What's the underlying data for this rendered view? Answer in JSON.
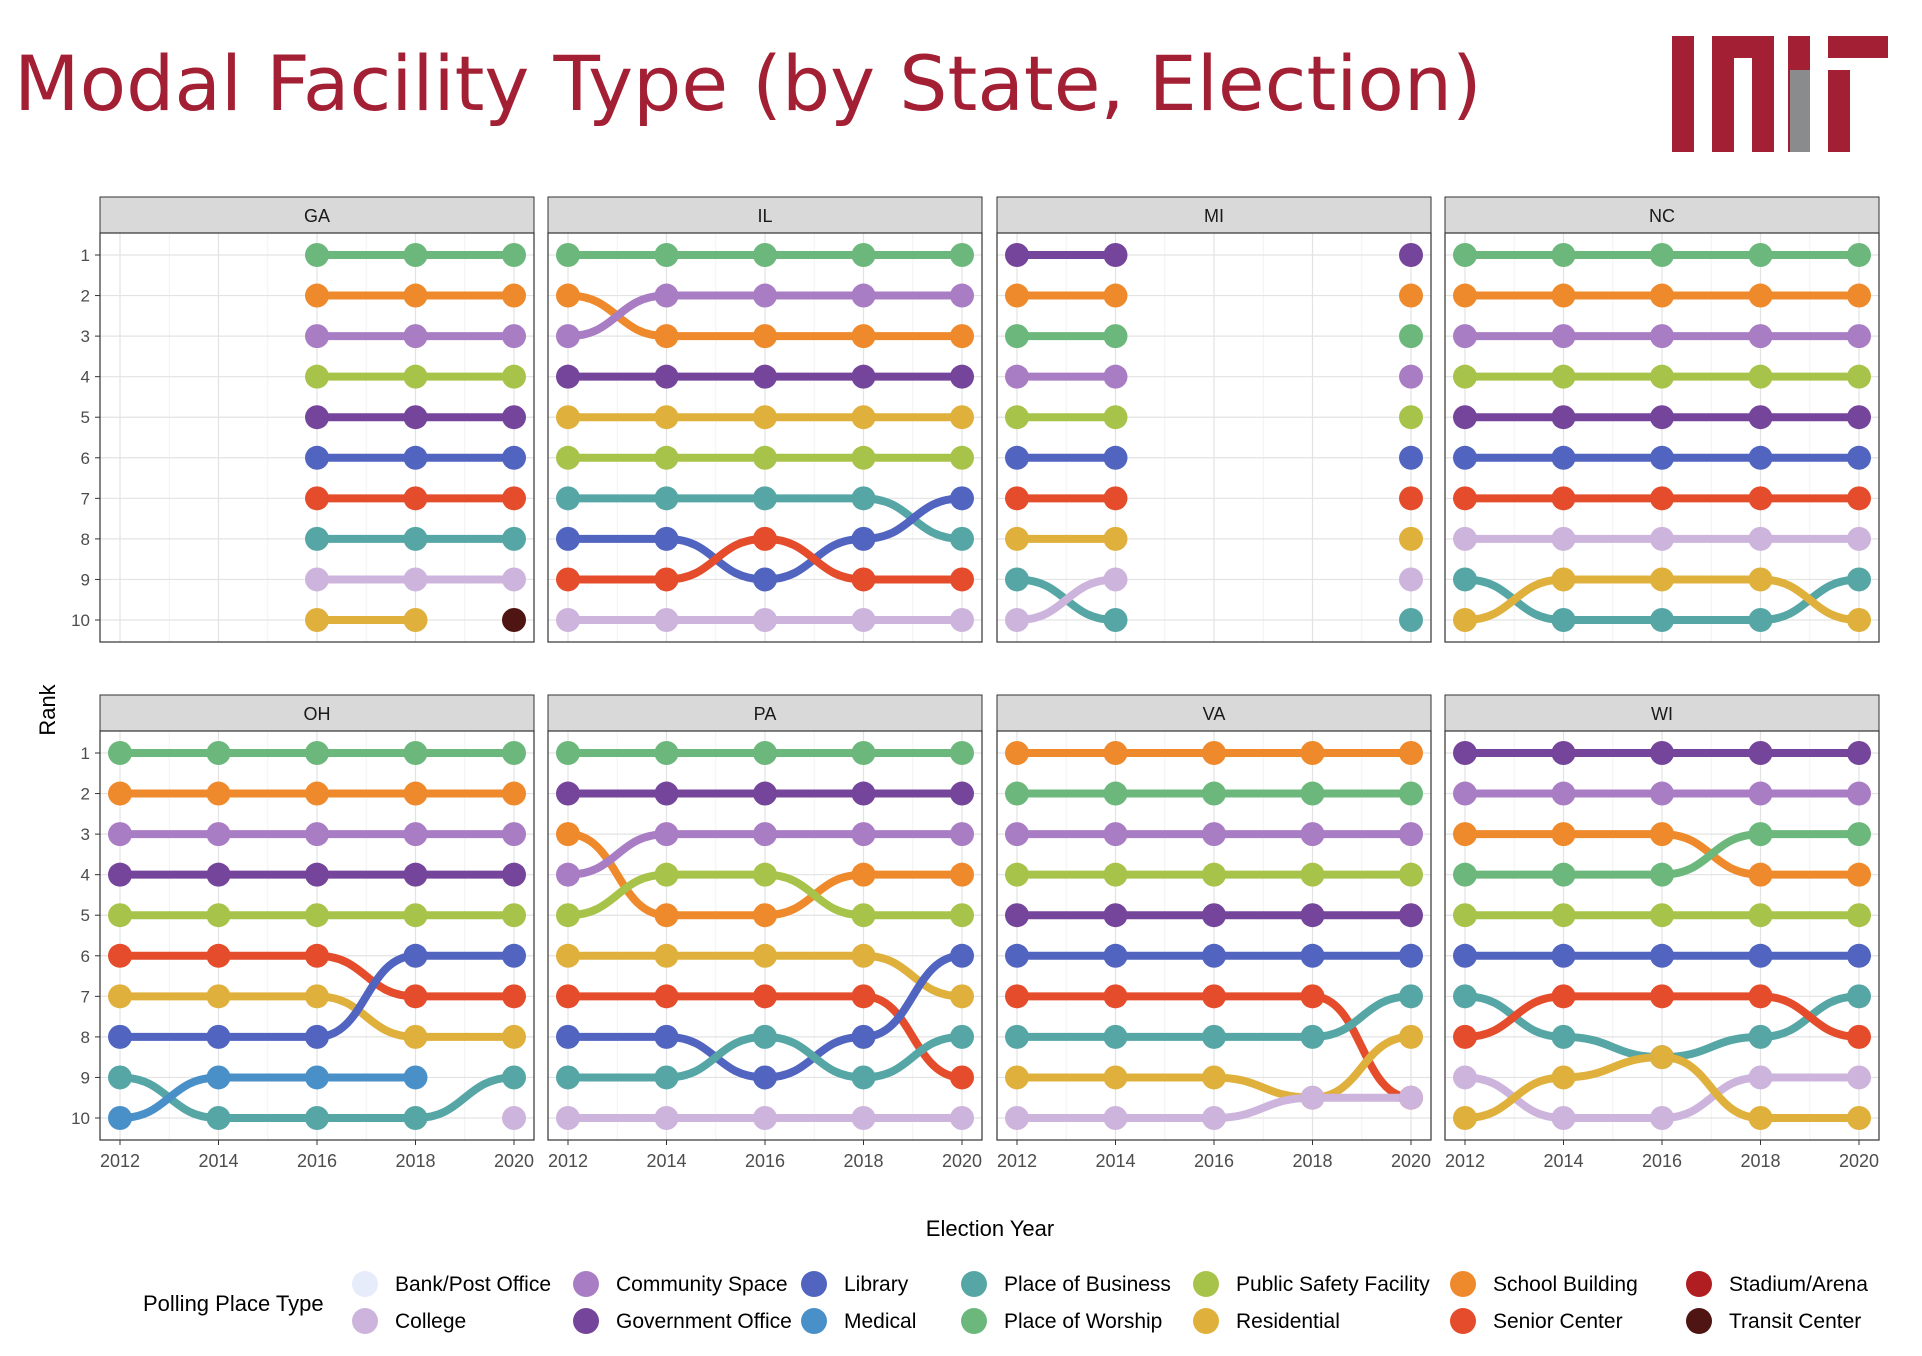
{
  "page": {
    "title": "Modal Facility Type (by State, Election)",
    "title_color": "#a31f34",
    "logo": {
      "text": "MIT",
      "color_main": "#a31f34",
      "color_accent": "#8a8b8c"
    }
  },
  "chart_data": {
    "type": "line",
    "subtype": "bump-chart-faceted",
    "xlabel": "Election Year",
    "ylabel": "Rank",
    "x": [
      2012,
      2014,
      2016,
      2018,
      2020
    ],
    "y_ticks": [
      1,
      2,
      3,
      4,
      5,
      6,
      7,
      8,
      9,
      10
    ],
    "xlim": [
      2012,
      2020
    ],
    "ylim": [
      10,
      1
    ],
    "grid": true,
    "legend": {
      "title": "Polling Place Type",
      "position": "bottom",
      "entries": [
        {
          "name": "Bank/Post Office",
          "color": "#e6ecfa"
        },
        {
          "name": "College",
          "color": "#cdb4dc"
        },
        {
          "name": "Community Space",
          "color": "#a97dc4"
        },
        {
          "name": "Government Office",
          "color": "#74459a"
        },
        {
          "name": "Library",
          "color": "#5064c0"
        },
        {
          "name": "Medical",
          "color": "#4a90c8"
        },
        {
          "name": "Place of Business",
          "color": "#57a6a6"
        },
        {
          "name": "Place of Worship",
          "color": "#6cb87c"
        },
        {
          "name": "Public Safety Facility",
          "color": "#a8c34a"
        },
        {
          "name": "Residential",
          "color": "#e0b03c"
        },
        {
          "name": "School Building",
          "color": "#ef8a2c"
        },
        {
          "name": "Senior Center",
          "color": "#e44c2c"
        },
        {
          "name": "Stadium/Arena",
          "color": "#b01e22"
        },
        {
          "name": "Transit Center",
          "color": "#4e1512"
        }
      ]
    },
    "panels": [
      {
        "state": "GA",
        "series": [
          {
            "name": "Place of Worship",
            "values": [
              null,
              null,
              1,
              1,
              1
            ]
          },
          {
            "name": "School Building",
            "values": [
              null,
              null,
              2,
              2,
              2
            ]
          },
          {
            "name": "Community Space",
            "values": [
              null,
              null,
              3,
              3,
              3
            ]
          },
          {
            "name": "Public Safety Facility",
            "values": [
              null,
              null,
              4,
              4,
              4
            ]
          },
          {
            "name": "Government Office",
            "values": [
              null,
              null,
              5,
              5,
              5
            ]
          },
          {
            "name": "Library",
            "values": [
              null,
              null,
              6,
              6,
              6
            ]
          },
          {
            "name": "Senior Center",
            "values": [
              null,
              null,
              7,
              7,
              7
            ]
          },
          {
            "name": "Place of Business",
            "values": [
              null,
              null,
              8,
              8,
              8
            ]
          },
          {
            "name": "College",
            "values": [
              null,
              null,
              9,
              9,
              9
            ]
          },
          {
            "name": "Residential",
            "values": [
              null,
              null,
              10,
              10,
              null
            ]
          },
          {
            "name": "Transit Center",
            "values": [
              null,
              null,
              null,
              null,
              10
            ]
          }
        ]
      },
      {
        "state": "IL",
        "series": [
          {
            "name": "Place of Worship",
            "values": [
              1,
              1,
              1,
              1,
              1
            ]
          },
          {
            "name": "School Building",
            "values": [
              2,
              3,
              3,
              3,
              3
            ]
          },
          {
            "name": "Community Space",
            "values": [
              3,
              2,
              2,
              2,
              2
            ]
          },
          {
            "name": "Government Office",
            "values": [
              4,
              4,
              4,
              4,
              4
            ]
          },
          {
            "name": "Residential",
            "values": [
              5,
              5,
              5,
              5,
              5
            ]
          },
          {
            "name": "Public Safety Facility",
            "values": [
              6,
              6,
              6,
              6,
              6
            ]
          },
          {
            "name": "Place of Business",
            "values": [
              7,
              7,
              7,
              7,
              8
            ]
          },
          {
            "name": "Library",
            "values": [
              8,
              8,
              9,
              8,
              7
            ]
          },
          {
            "name": "Senior Center",
            "values": [
              9,
              9,
              8,
              9,
              9
            ]
          },
          {
            "name": "College",
            "values": [
              10,
              10,
              10,
              10,
              10
            ]
          }
        ]
      },
      {
        "state": "MI",
        "series": [
          {
            "name": "Government Office",
            "values": [
              1,
              1,
              null,
              null,
              1
            ]
          },
          {
            "name": "School Building",
            "values": [
              2,
              2,
              null,
              null,
              2
            ]
          },
          {
            "name": "Place of Worship",
            "values": [
              3,
              3,
              null,
              null,
              3
            ]
          },
          {
            "name": "Community Space",
            "values": [
              4,
              4,
              null,
              null,
              4
            ]
          },
          {
            "name": "Public Safety Facility",
            "values": [
              5,
              5,
              null,
              null,
              5
            ]
          },
          {
            "name": "Library",
            "values": [
              6,
              6,
              null,
              null,
              6
            ]
          },
          {
            "name": "Senior Center",
            "values": [
              7,
              7,
              null,
              null,
              7
            ]
          },
          {
            "name": "Residential",
            "values": [
              8,
              8,
              null,
              null,
              8
            ]
          },
          {
            "name": "Place of Business",
            "values": [
              9,
              10,
              null,
              null,
              10
            ]
          },
          {
            "name": "College",
            "values": [
              10,
              9,
              null,
              null,
              9
            ]
          }
        ]
      },
      {
        "state": "NC",
        "series": [
          {
            "name": "Place of Worship",
            "values": [
              1,
              1,
              1,
              1,
              1
            ]
          },
          {
            "name": "School Building",
            "values": [
              2,
              2,
              2,
              2,
              2
            ]
          },
          {
            "name": "Community Space",
            "values": [
              3,
              3,
              3,
              3,
              3
            ]
          },
          {
            "name": "Public Safety Facility",
            "values": [
              4,
              4,
              4,
              4,
              4
            ]
          },
          {
            "name": "Government Office",
            "values": [
              5,
              5,
              5,
              5,
              5
            ]
          },
          {
            "name": "Library",
            "values": [
              6,
              6,
              6,
              6,
              6
            ]
          },
          {
            "name": "Senior Center",
            "values": [
              7,
              7,
              7,
              7,
              7
            ]
          },
          {
            "name": "College",
            "values": [
              8,
              8,
              8,
              8,
              8
            ]
          },
          {
            "name": "Place of Business",
            "values": [
              9,
              10,
              10,
              10,
              9
            ]
          },
          {
            "name": "Residential",
            "values": [
              10,
              9,
              9,
              9,
              10
            ]
          }
        ]
      },
      {
        "state": "OH",
        "series": [
          {
            "name": "Place of Worship",
            "values": [
              1,
              1,
              1,
              1,
              1
            ]
          },
          {
            "name": "School Building",
            "values": [
              2,
              2,
              2,
              2,
              2
            ]
          },
          {
            "name": "Community Space",
            "values": [
              3,
              3,
              3,
              3,
              3
            ]
          },
          {
            "name": "Government Office",
            "values": [
              4,
              4,
              4,
              4,
              4
            ]
          },
          {
            "name": "Public Safety Facility",
            "values": [
              5,
              5,
              5,
              5,
              5
            ]
          },
          {
            "name": "Senior Center",
            "values": [
              6,
              6,
              6,
              7,
              7
            ]
          },
          {
            "name": "Residential",
            "values": [
              7,
              7,
              7,
              8,
              8
            ]
          },
          {
            "name": "Library",
            "values": [
              8,
              8,
              8,
              6,
              6
            ]
          },
          {
            "name": "Place of Business",
            "values": [
              9,
              10,
              10,
              10,
              9
            ]
          },
          {
            "name": "Medical",
            "values": [
              10,
              9,
              9,
              9,
              null
            ]
          },
          {
            "name": "College",
            "values": [
              null,
              null,
              null,
              null,
              10
            ]
          }
        ]
      },
      {
        "state": "PA",
        "series": [
          {
            "name": "Place of Worship",
            "values": [
              1,
              1,
              1,
              1,
              1
            ]
          },
          {
            "name": "Government Office",
            "values": [
              2,
              2,
              2,
              2,
              2
            ]
          },
          {
            "name": "School Building",
            "values": [
              3,
              5,
              5,
              4,
              4
            ]
          },
          {
            "name": "Community Space",
            "values": [
              4,
              3,
              3,
              3,
              3
            ]
          },
          {
            "name": "Public Safety Facility",
            "values": [
              5,
              4,
              4,
              5,
              5
            ]
          },
          {
            "name": "Residential",
            "values": [
              6,
              6,
              6,
              6,
              7
            ]
          },
          {
            "name": "Senior Center",
            "values": [
              7,
              7,
              7,
              7,
              9
            ]
          },
          {
            "name": "Library",
            "values": [
              8,
              8,
              9,
              8,
              6
            ]
          },
          {
            "name": "Place of Business",
            "values": [
              9,
              9,
              8,
              9,
              8
            ]
          },
          {
            "name": "College",
            "values": [
              10,
              10,
              10,
              10,
              10
            ]
          }
        ]
      },
      {
        "state": "VA",
        "series": [
          {
            "name": "School Building",
            "values": [
              1,
              1,
              1,
              1,
              1
            ]
          },
          {
            "name": "Place of Worship",
            "values": [
              2,
              2,
              2,
              2,
              2
            ]
          },
          {
            "name": "Community Space",
            "values": [
              3,
              3,
              3,
              3,
              3
            ]
          },
          {
            "name": "Public Safety Facility",
            "values": [
              4,
              4,
              4,
              4,
              4
            ]
          },
          {
            "name": "Government Office",
            "values": [
              5,
              5,
              5,
              5,
              5
            ]
          },
          {
            "name": "Library",
            "values": [
              6,
              6,
              6,
              6,
              6
            ]
          },
          {
            "name": "Senior Center",
            "values": [
              7,
              7,
              7,
              7,
              9.5
            ]
          },
          {
            "name": "Place of Business",
            "values": [
              8,
              8,
              8,
              8,
              7
            ]
          },
          {
            "name": "Residential",
            "values": [
              9,
              9,
              9,
              9.5,
              8
            ]
          },
          {
            "name": "College",
            "values": [
              10,
              10,
              10,
              9.5,
              9.5
            ]
          }
        ]
      },
      {
        "state": "WI",
        "series": [
          {
            "name": "Government Office",
            "values": [
              1,
              1,
              1,
              1,
              1
            ]
          },
          {
            "name": "Community Space",
            "values": [
              2,
              2,
              2,
              2,
              2
            ]
          },
          {
            "name": "School Building",
            "values": [
              3,
              3,
              3,
              4,
              4
            ]
          },
          {
            "name": "Place of Worship",
            "values": [
              4,
              4,
              4,
              3,
              3
            ]
          },
          {
            "name": "Public Safety Facility",
            "values": [
              5,
              5,
              5,
              5,
              5
            ]
          },
          {
            "name": "Library",
            "values": [
              6,
              6,
              6,
              6,
              6
            ]
          },
          {
            "name": "Place of Business",
            "values": [
              7,
              8,
              8.5,
              8,
              7
            ]
          },
          {
            "name": "Senior Center",
            "values": [
              8,
              7,
              7,
              7,
              8
            ]
          },
          {
            "name": "College",
            "values": [
              9,
              10,
              10,
              9,
              9
            ]
          },
          {
            "name": "Residential",
            "values": [
              10,
              9,
              8.5,
              10,
              10
            ]
          }
        ]
      }
    ]
  }
}
